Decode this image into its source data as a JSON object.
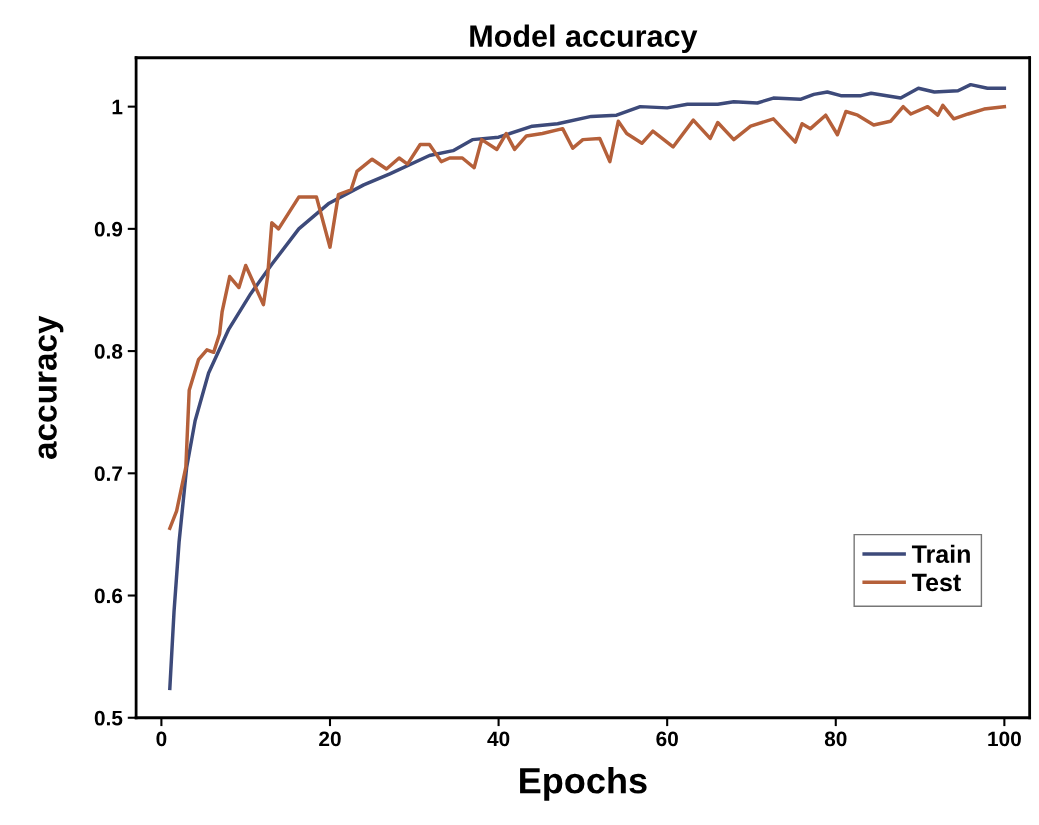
{
  "chart_data": {
    "type": "line",
    "title": "Model accuracy",
    "xlabel": "Epochs",
    "ylabel": "accuracy",
    "xlim": [
      -3,
      103
    ],
    "xticks": [
      0,
      20,
      40,
      60,
      80,
      100
    ],
    "ylim": [
      0.5,
      1.04
    ],
    "yticks": [
      0.5,
      0.6,
      0.7,
      0.8,
      0.9,
      1
    ],
    "grid": false,
    "legend": "bottom right",
    "series": [
      {
        "name": "Train",
        "color": "#3d4a7a",
        "x": [
          1,
          1.5,
          2.1,
          3,
          4,
          5.6,
          8,
          10.6,
          13.1,
          16.3,
          19.9,
          24,
          27.1,
          31.8,
          34.6,
          36.9,
          40,
          44,
          47,
          51,
          54,
          56.8,
          60,
          62.4,
          66,
          67.9,
          70.7,
          72.6,
          75.8,
          77.4,
          79,
          80.6,
          83,
          84.2,
          87.7,
          89.8,
          91.7,
          94.5,
          96,
          98,
          100
        ],
        "values": [
          0.524,
          0.587,
          0.644,
          0.705,
          0.743,
          0.782,
          0.818,
          0.847,
          0.871,
          0.9,
          0.921,
          0.936,
          0.945,
          0.96,
          0.964,
          0.973,
          0.975,
          0.984,
          0.986,
          0.992,
          0.993,
          1.0,
          0.999,
          1.002,
          1.002,
          1.004,
          1.003,
          1.007,
          1.006,
          1.01,
          1.012,
          1.009,
          1.009,
          1.011,
          1.007,
          1.015,
          1.012,
          1.013,
          1.018,
          1.015,
          1.015
        ]
      },
      {
        "name": "Test",
        "color": "#b5603a",
        "x": [
          1,
          1.8,
          2.9,
          3.3,
          4.4,
          5.4,
          6.2,
          6.9,
          7.2,
          8.1,
          9.2,
          10,
          12.1,
          12.6,
          13.1,
          13.9,
          16.3,
          18.4,
          20,
          21,
          22.5,
          23.2,
          25,
          26.7,
          28.2,
          29.2,
          30.7,
          31.8,
          33.2,
          34.2,
          35.7,
          37.1,
          38,
          39.8,
          40.9,
          41.9,
          43.3,
          45.2,
          47.6,
          48.8,
          50,
          52,
          53.2,
          54.2,
          55.2,
          57,
          58.3,
          60.7,
          63.1,
          65.1,
          66,
          67.9,
          69.9,
          72.6,
          75.2,
          76,
          77,
          78.8,
          80.2,
          81.2,
          82.6,
          84.5,
          86.5,
          88,
          88.9,
          90.9,
          92.1,
          92.7,
          94,
          95.7,
          97.6,
          100
        ],
        "values": [
          0.655,
          0.669,
          0.705,
          0.768,
          0.793,
          0.801,
          0.799,
          0.814,
          0.832,
          0.861,
          0.852,
          0.87,
          0.838,
          0.861,
          0.905,
          0.9,
          0.926,
          0.926,
          0.885,
          0.928,
          0.932,
          0.947,
          0.957,
          0.949,
          0.958,
          0.953,
          0.969,
          0.969,
          0.955,
          0.958,
          0.958,
          0.95,
          0.973,
          0.965,
          0.978,
          0.965,
          0.976,
          0.978,
          0.982,
          0.966,
          0.973,
          0.974,
          0.955,
          0.988,
          0.978,
          0.97,
          0.98,
          0.967,
          0.989,
          0.974,
          0.987,
          0.973,
          0.984,
          0.99,
          0.971,
          0.986,
          0.982,
          0.993,
          0.977,
          0.996,
          0.993,
          0.985,
          0.988,
          1.0,
          0.994,
          1.0,
          0.993,
          1.001,
          0.99,
          0.994,
          0.998,
          1.0
        ]
      }
    ]
  }
}
